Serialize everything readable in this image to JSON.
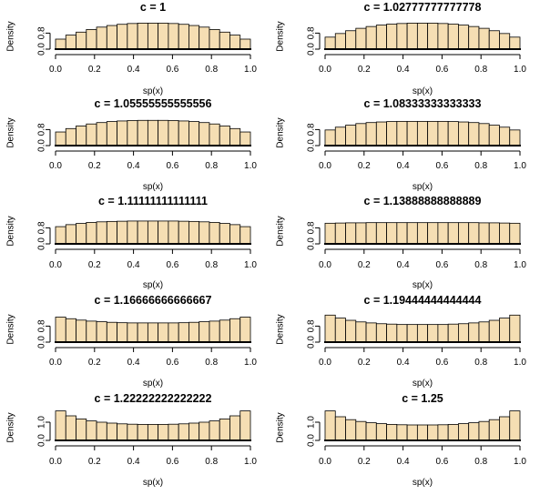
{
  "colors": {
    "bar_fill": "#f5deb3",
    "bar_stroke": "#000000",
    "axis": "#000000"
  },
  "chart_data": [
    {
      "type": "bar",
      "title": "c = 1",
      "xlabel": "sp(x)",
      "ylabel": "Density",
      "xlim": [
        0,
        1
      ],
      "ylim": [
        0,
        1.4
      ],
      "xticks": [
        "0.0",
        "0.2",
        "0.4",
        "0.6",
        "0.8",
        "1.0"
      ],
      "yticks": [
        "0.0",
        "0.8"
      ],
      "ytick_values": [
        0,
        0.8
      ],
      "values": [
        0.5,
        0.7,
        0.85,
        0.98,
        1.1,
        1.18,
        1.24,
        1.28,
        1.3,
        1.3,
        1.3,
        1.28,
        1.24,
        1.18,
        1.1,
        0.98,
        0.85,
        0.7,
        0.5
      ]
    },
    {
      "type": "bar",
      "title": "c = 1.02777777777778",
      "xlabel": "sp(x)",
      "ylabel": "Density",
      "xlim": [
        0,
        1
      ],
      "ylim": [
        0,
        1.4
      ],
      "xticks": [
        "0.0",
        "0.2",
        "0.4",
        "0.6",
        "0.8",
        "1.0"
      ],
      "yticks": [
        "0.0",
        "0.8"
      ],
      "ytick_values": [
        0,
        0.8
      ],
      "values": [
        0.6,
        0.78,
        0.92,
        1.04,
        1.13,
        1.2,
        1.25,
        1.28,
        1.3,
        1.3,
        1.3,
        1.28,
        1.25,
        1.2,
        1.13,
        1.04,
        0.92,
        0.78,
        0.6
      ]
    },
    {
      "type": "bar",
      "title": "c = 1.05555555555556",
      "xlabel": "sp(x)",
      "ylabel": "Density",
      "xlim": [
        0,
        1
      ],
      "ylim": [
        0,
        1.4
      ],
      "xticks": [
        "0.0",
        "0.2",
        "0.4",
        "0.6",
        "0.8",
        "1.0"
      ],
      "yticks": [
        "0.0",
        "0.8"
      ],
      "ytick_values": [
        0,
        0.8
      ],
      "values": [
        0.68,
        0.85,
        0.98,
        1.08,
        1.15,
        1.2,
        1.23,
        1.25,
        1.26,
        1.26,
        1.26,
        1.25,
        1.23,
        1.2,
        1.15,
        1.08,
        0.98,
        0.85,
        0.68
      ]
    },
    {
      "type": "bar",
      "title": "c = 1.08333333333333",
      "xlabel": "sp(x)",
      "ylabel": "Density",
      "xlim": [
        0,
        1
      ],
      "ylim": [
        0,
        1.4
      ],
      "xticks": [
        "0.0",
        "0.2",
        "0.4",
        "0.6",
        "0.8",
        "1.0"
      ],
      "yticks": [
        "0.0",
        "0.8"
      ],
      "ytick_values": [
        0,
        0.8
      ],
      "values": [
        0.78,
        0.92,
        1.02,
        1.1,
        1.15,
        1.18,
        1.2,
        1.21,
        1.21,
        1.21,
        1.21,
        1.21,
        1.2,
        1.18,
        1.15,
        1.1,
        1.02,
        0.92,
        0.78
      ]
    },
    {
      "type": "bar",
      "title": "c = 1.11111111111111",
      "xlabel": "sp(x)",
      "ylabel": "Density",
      "xlim": [
        0,
        1
      ],
      "ylim": [
        0,
        1.4
      ],
      "xticks": [
        "0.0",
        "0.2",
        "0.4",
        "0.6",
        "0.8",
        "1.0"
      ],
      "yticks": [
        "0.0",
        "0.8"
      ],
      "ytick_values": [
        0,
        0.8
      ],
      "values": [
        0.86,
        0.96,
        1.02,
        1.07,
        1.1,
        1.12,
        1.13,
        1.14,
        1.14,
        1.14,
        1.14,
        1.14,
        1.13,
        1.12,
        1.1,
        1.07,
        1.02,
        0.96,
        0.86
      ]
    },
    {
      "type": "bar",
      "title": "c = 1.13888888888889",
      "xlabel": "sp(x)",
      "ylabel": "Density",
      "xlim": [
        0,
        1
      ],
      "ylim": [
        0,
        1.4
      ],
      "xticks": [
        "0.0",
        "0.2",
        "0.4",
        "0.6",
        "0.8",
        "1.0"
      ],
      "yticks": [
        "0.0",
        "0.8"
      ],
      "ytick_values": [
        0,
        0.8
      ],
      "values": [
        1.03,
        1.04,
        1.05,
        1.05,
        1.06,
        1.06,
        1.06,
        1.06,
        1.06,
        1.06,
        1.06,
        1.06,
        1.06,
        1.06,
        1.06,
        1.05,
        1.05,
        1.04,
        1.03
      ]
    },
    {
      "type": "bar",
      "title": "c = 1.16666666666667",
      "xlabel": "sp(x)",
      "ylabel": "Density",
      "xlim": [
        0,
        1
      ],
      "ylim": [
        0,
        1.4
      ],
      "xticks": [
        "0.0",
        "0.2",
        "0.4",
        "0.6",
        "0.8",
        "1.0"
      ],
      "yticks": [
        "0.0",
        "0.8"
      ],
      "ytick_values": [
        0,
        0.8
      ],
      "values": [
        1.25,
        1.17,
        1.1,
        1.05,
        1.02,
        0.99,
        0.97,
        0.96,
        0.96,
        0.96,
        0.96,
        0.96,
        0.97,
        0.99,
        1.02,
        1.05,
        1.1,
        1.17,
        1.25
      ]
    },
    {
      "type": "bar",
      "title": "c = 1.19444444444444",
      "xlabel": "sp(x)",
      "ylabel": "Density",
      "xlim": [
        0,
        1
      ],
      "ylim": [
        0,
        1.4
      ],
      "xticks": [
        "0.0",
        "0.2",
        "0.4",
        "0.6",
        "0.8",
        "1.0"
      ],
      "yticks": [
        "0.0",
        "0.8"
      ],
      "ytick_values": [
        0,
        0.8
      ],
      "values": [
        1.35,
        1.2,
        1.09,
        1.01,
        0.96,
        0.92,
        0.9,
        0.88,
        0.88,
        0.88,
        0.88,
        0.88,
        0.9,
        0.92,
        0.96,
        1.01,
        1.09,
        1.2,
        1.35
      ]
    },
    {
      "type": "bar",
      "title": "c = 1.22222222222222",
      "xlabel": "sp(x)",
      "ylabel": "Density",
      "xlim": [
        0,
        1
      ],
      "ylim": [
        0,
        1.7
      ],
      "xticks": [
        "0.0",
        "0.2",
        "0.4",
        "0.6",
        "0.8",
        "1.0"
      ],
      "yticks": [
        "0.0",
        "1.0"
      ],
      "ytick_values": [
        0,
        1.0
      ],
      "values": [
        1.62,
        1.35,
        1.18,
        1.07,
        1.0,
        0.95,
        0.91,
        0.89,
        0.88,
        0.88,
        0.88,
        0.89,
        0.91,
        0.95,
        1.0,
        1.07,
        1.18,
        1.35,
        1.62
      ]
    },
    {
      "type": "bar",
      "title": "c = 1.25",
      "xlabel": "sp(x)",
      "ylabel": "Density",
      "xlim": [
        0,
        1
      ],
      "ylim": [
        0,
        1.7
      ],
      "xticks": [
        "0.0",
        "0.2",
        "0.4",
        "0.6",
        "0.8",
        "1.0"
      ],
      "yticks": [
        "0.0",
        "1.0"
      ],
      "ytick_values": [
        0,
        1.0
      ],
      "values": [
        1.62,
        1.3,
        1.14,
        1.04,
        0.97,
        0.92,
        0.88,
        0.86,
        0.85,
        0.85,
        0.85,
        0.86,
        0.88,
        0.92,
        0.97,
        1.04,
        1.14,
        1.3,
        1.62
      ]
    }
  ]
}
